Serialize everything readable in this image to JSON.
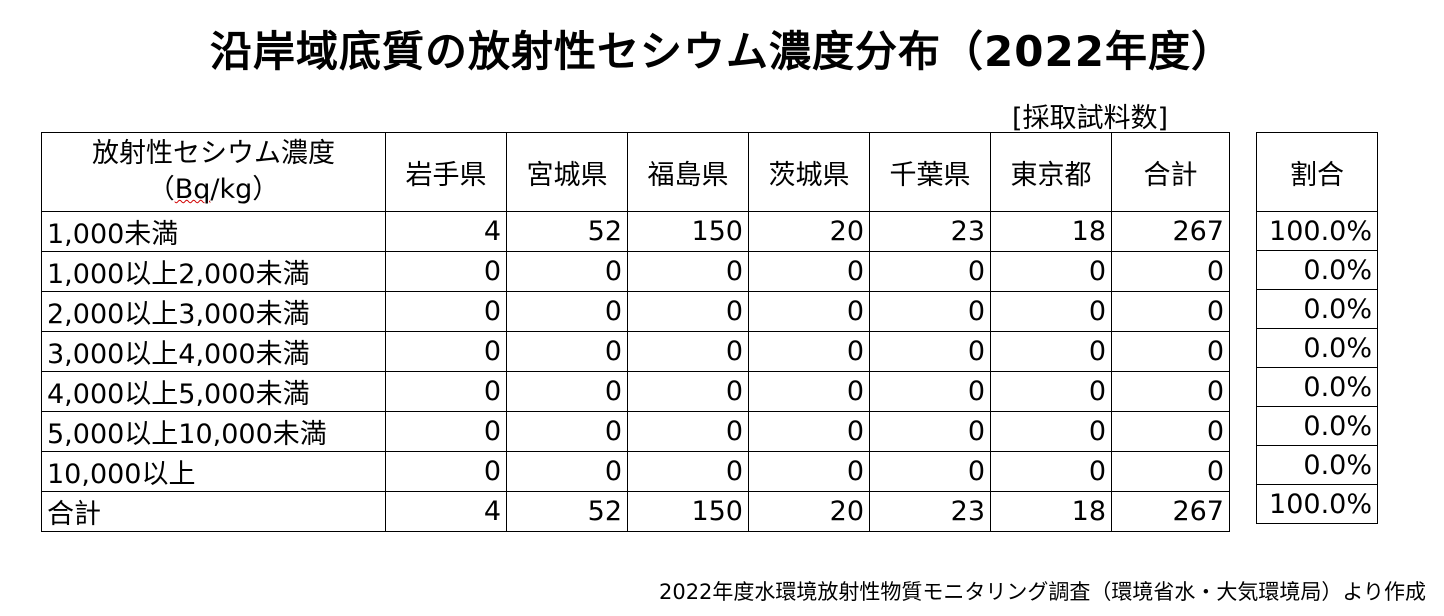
{
  "title": "沿岸域底質の放射性セシウム濃度分布（2022年度）",
  "unit_label": "[採取試料数]",
  "table": {
    "header_first_line1": "放射性セシウム濃度",
    "header_first_line2_open": "（",
    "header_first_line2_unit": "Bq",
    "header_first_line2_close": "/kg）",
    "columns": [
      "岩手県",
      "宮城県",
      "福島県",
      "茨城県",
      "千葉県",
      "東京都",
      "合計"
    ],
    "rows": [
      {
        "label": "1,000未満",
        "values": [
          "4",
          "52",
          "150",
          "20",
          "23",
          "18",
          "267"
        ]
      },
      {
        "label": "1,000以上2,000未満",
        "values": [
          "0",
          "0",
          "0",
          "0",
          "0",
          "0",
          "0"
        ]
      },
      {
        "label": "2,000以上3,000未満",
        "values": [
          "0",
          "0",
          "0",
          "0",
          "0",
          "0",
          "0"
        ]
      },
      {
        "label": "3,000以上4,000未満",
        "values": [
          "0",
          "0",
          "0",
          "0",
          "0",
          "0",
          "0"
        ]
      },
      {
        "label": "4,000以上5,000未満",
        "values": [
          "0",
          "0",
          "0",
          "0",
          "0",
          "0",
          "0"
        ]
      },
      {
        "label": "5,000以上10,000未満",
        "values": [
          "0",
          "0",
          "0",
          "0",
          "0",
          "0",
          "0"
        ]
      },
      {
        "label": "10,000以上",
        "values": [
          "0",
          "0",
          "0",
          "0",
          "0",
          "0",
          "0"
        ]
      },
      {
        "label": "合計",
        "values": [
          "4",
          "52",
          "150",
          "20",
          "23",
          "18",
          "267"
        ]
      }
    ]
  },
  "ratio_table": {
    "header": "割合",
    "values": [
      "100.0%",
      "0.0%",
      "0.0%",
      "0.0%",
      "0.0%",
      "0.0%",
      "0.0%",
      "100.0%"
    ]
  },
  "source": "2022年度水環境放射性物質モニタリング調査（環境省水・大気環境局）より作成"
}
